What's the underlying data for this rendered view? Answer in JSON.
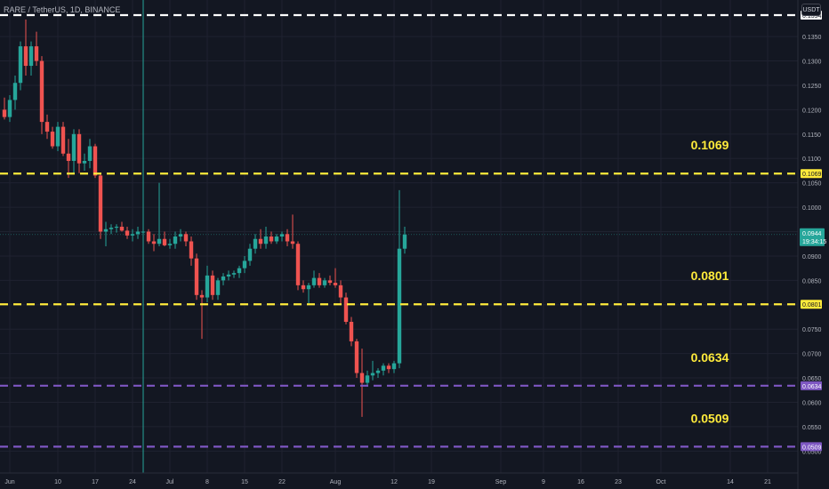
{
  "header": {
    "title": "RARE / TetherUS, 1D, BINANCE"
  },
  "currency_button": {
    "label": "USDT"
  },
  "price_badge": {
    "value": "0.0944",
    "countdown": "19:34:15",
    "color": "#26a69a"
  },
  "colors": {
    "background": "#131722",
    "grid": "#1f2230",
    "up": "#26a69a",
    "down": "#ef5350",
    "white_level": "#ffffff",
    "yellow_level": "#ffeb3b",
    "purple_level": "#7e57c2",
    "axis_text": "#b2b5be"
  },
  "chart_data": {
    "type": "candlestick",
    "title": "RARE / TetherUS, 1D, BINANCE",
    "xlabel": "",
    "ylabel": "",
    "ylim": [
      0.0455,
      0.1425
    ],
    "grid": true,
    "y_ticks": [
      "0.0500",
      "0.0550",
      "0.0600",
      "0.0650",
      "0.0700",
      "0.0750",
      "0.0800",
      "0.0850",
      "0.0900",
      "0.0950",
      "0.1000",
      "0.1050",
      "0.1100",
      "0.1150",
      "0.1200",
      "0.1250",
      "0.1300",
      "0.1350"
    ],
    "x_ticks": [
      {
        "label": "Jun",
        "date": "2024-06-01"
      },
      {
        "label": "10",
        "date": "2024-06-10"
      },
      {
        "label": "17",
        "date": "2024-06-17"
      },
      {
        "label": "24",
        "date": "2024-06-24"
      },
      {
        "label": "Jul",
        "date": "2024-07-01"
      },
      {
        "label": "8",
        "date": "2024-07-08"
      },
      {
        "label": "15",
        "date": "2024-07-15"
      },
      {
        "label": "22",
        "date": "2024-07-22"
      },
      {
        "label": "Aug",
        "date": "2024-08-01"
      },
      {
        "label": "12",
        "date": "2024-08-12"
      },
      {
        "label": "19",
        "date": "2024-08-19"
      },
      {
        "label": "Sep",
        "date": "2024-09-01"
      },
      {
        "label": "9",
        "date": "2024-09-09"
      },
      {
        "label": "16",
        "date": "2024-09-16"
      },
      {
        "label": "23",
        "date": "2024-09-23"
      },
      {
        "label": "Oct",
        "date": "2024-10-01"
      },
      {
        "label": "14",
        "date": "2024-10-14"
      },
      {
        "label": "21",
        "date": "2024-10-21"
      }
    ],
    "levels": [
      {
        "value": 0.1394,
        "label": "0.1394",
        "color": "#ffffff"
      },
      {
        "value": 0.1069,
        "label": "0.1069",
        "color": "#ffeb3b"
      },
      {
        "value": 0.0801,
        "label": "0.0801",
        "color": "#ffeb3b"
      },
      {
        "value": 0.0634,
        "label": "0.0634",
        "color": "#7e57c2"
      },
      {
        "value": 0.0509,
        "label": "0.0509",
        "color": "#7e57c2"
      }
    ],
    "last_price": 0.0944,
    "candles": [
      {
        "date": "2024-05-31",
        "o": 0.12,
        "h": 0.1225,
        "l": 0.118,
        "c": 0.1185
      },
      {
        "date": "2024-06-01",
        "o": 0.1185,
        "h": 0.123,
        "l": 0.1175,
        "c": 0.122
      },
      {
        "date": "2024-06-02",
        "o": 0.122,
        "h": 0.127,
        "l": 0.12,
        "c": 0.1255
      },
      {
        "date": "2024-06-03",
        "o": 0.1255,
        "h": 0.134,
        "l": 0.124,
        "c": 0.133
      },
      {
        "date": "2024-06-04",
        "o": 0.133,
        "h": 0.1385,
        "l": 0.127,
        "c": 0.129
      },
      {
        "date": "2024-06-05",
        "o": 0.129,
        "h": 0.134,
        "l": 0.127,
        "c": 0.133
      },
      {
        "date": "2024-06-06",
        "o": 0.133,
        "h": 0.136,
        "l": 0.129,
        "c": 0.13
      },
      {
        "date": "2024-06-07",
        "o": 0.13,
        "h": 0.131,
        "l": 0.115,
        "c": 0.1175
      },
      {
        "date": "2024-06-08",
        "o": 0.1175,
        "h": 0.119,
        "l": 0.114,
        "c": 0.1155
      },
      {
        "date": "2024-06-09",
        "o": 0.1155,
        "h": 0.1165,
        "l": 0.112,
        "c": 0.1125
      },
      {
        "date": "2024-06-10",
        "o": 0.1125,
        "h": 0.1175,
        "l": 0.1115,
        "c": 0.1165
      },
      {
        "date": "2024-06-11",
        "o": 0.1165,
        "h": 0.1175,
        "l": 0.1105,
        "c": 0.111
      },
      {
        "date": "2024-06-12",
        "o": 0.111,
        "h": 0.114,
        "l": 0.106,
        "c": 0.1095
      },
      {
        "date": "2024-06-13",
        "o": 0.1095,
        "h": 0.116,
        "l": 0.107,
        "c": 0.115
      },
      {
        "date": "2024-06-14",
        "o": 0.115,
        "h": 0.116,
        "l": 0.107,
        "c": 0.109
      },
      {
        "date": "2024-06-15",
        "o": 0.109,
        "h": 0.111,
        "l": 0.1075,
        "c": 0.1095
      },
      {
        "date": "2024-06-16",
        "o": 0.1095,
        "h": 0.114,
        "l": 0.108,
        "c": 0.1125
      },
      {
        "date": "2024-06-17",
        "o": 0.1125,
        "h": 0.113,
        "l": 0.106,
        "c": 0.1065
      },
      {
        "date": "2024-06-18",
        "o": 0.1065,
        "h": 0.107,
        "l": 0.0935,
        "c": 0.095
      },
      {
        "date": "2024-06-19",
        "o": 0.095,
        "h": 0.097,
        "l": 0.092,
        "c": 0.0955
      },
      {
        "date": "2024-06-20",
        "o": 0.0955,
        "h": 0.0965,
        "l": 0.0945,
        "c": 0.0958
      },
      {
        "date": "2024-06-21",
        "o": 0.0958,
        "h": 0.0965,
        "l": 0.0948,
        "c": 0.096
      },
      {
        "date": "2024-06-22",
        "o": 0.096,
        "h": 0.097,
        "l": 0.095,
        "c": 0.0952
      },
      {
        "date": "2024-06-23",
        "o": 0.0952,
        "h": 0.096,
        "l": 0.0935,
        "c": 0.0942
      },
      {
        "date": "2024-06-24",
        "o": 0.0942,
        "h": 0.0955,
        "l": 0.093,
        "c": 0.0945
      },
      {
        "date": "2024-06-25",
        "o": 0.0945,
        "h": 0.096,
        "l": 0.0935,
        "c": 0.095
      },
      {
        "date": "2024-06-26",
        "o": 0.095,
        "h": 1.0,
        "l": 0.0,
        "c": 0.095
      },
      {
        "date": "2024-06-27",
        "o": 0.095,
        "h": 0.0955,
        "l": 0.0925,
        "c": 0.093
      },
      {
        "date": "2024-06-28",
        "o": 0.093,
        "h": 0.0945,
        "l": 0.091,
        "c": 0.0925
      },
      {
        "date": "2024-06-29",
        "o": 0.0925,
        "h": 0.105,
        "l": 0.092,
        "c": 0.0935
      },
      {
        "date": "2024-06-30",
        "o": 0.0935,
        "h": 0.095,
        "l": 0.092,
        "c": 0.0922
      },
      {
        "date": "2024-07-01",
        "o": 0.0922,
        "h": 0.0935,
        "l": 0.0915,
        "c": 0.0925
      },
      {
        "date": "2024-07-02",
        "o": 0.0925,
        "h": 0.095,
        "l": 0.0915,
        "c": 0.094
      },
      {
        "date": "2024-07-03",
        "o": 0.094,
        "h": 0.0955,
        "l": 0.093,
        "c": 0.0945
      },
      {
        "date": "2024-07-04",
        "o": 0.0945,
        "h": 0.095,
        "l": 0.092,
        "c": 0.093
      },
      {
        "date": "2024-07-05",
        "o": 0.093,
        "h": 0.094,
        "l": 0.088,
        "c": 0.0895
      },
      {
        "date": "2024-07-06",
        "o": 0.0895,
        "h": 0.0905,
        "l": 0.081,
        "c": 0.082
      },
      {
        "date": "2024-07-07",
        "o": 0.082,
        "h": 0.083,
        "l": 0.073,
        "c": 0.0815
      },
      {
        "date": "2024-07-08",
        "o": 0.0815,
        "h": 0.088,
        "l": 0.0805,
        "c": 0.086
      },
      {
        "date": "2024-07-09",
        "o": 0.086,
        "h": 0.087,
        "l": 0.081,
        "c": 0.082
      },
      {
        "date": "2024-07-10",
        "o": 0.082,
        "h": 0.0855,
        "l": 0.081,
        "c": 0.085
      },
      {
        "date": "2024-07-11",
        "o": 0.085,
        "h": 0.0865,
        "l": 0.084,
        "c": 0.0858
      },
      {
        "date": "2024-07-12",
        "o": 0.0858,
        "h": 0.087,
        "l": 0.085,
        "c": 0.0862
      },
      {
        "date": "2024-07-13",
        "o": 0.0862,
        "h": 0.087,
        "l": 0.0855,
        "c": 0.0865
      },
      {
        "date": "2024-07-14",
        "o": 0.0865,
        "h": 0.088,
        "l": 0.0855,
        "c": 0.0875
      },
      {
        "date": "2024-07-15",
        "o": 0.0875,
        "h": 0.09,
        "l": 0.0865,
        "c": 0.089
      },
      {
        "date": "2024-07-16",
        "o": 0.089,
        "h": 0.0925,
        "l": 0.088,
        "c": 0.0915
      },
      {
        "date": "2024-07-17",
        "o": 0.0915,
        "h": 0.0945,
        "l": 0.0905,
        "c": 0.0935
      },
      {
        "date": "2024-07-18",
        "o": 0.0935,
        "h": 0.0955,
        "l": 0.0915,
        "c": 0.0925
      },
      {
        "date": "2024-07-19",
        "o": 0.0925,
        "h": 0.096,
        "l": 0.0915,
        "c": 0.094
      },
      {
        "date": "2024-07-20",
        "o": 0.094,
        "h": 0.095,
        "l": 0.0925,
        "c": 0.093
      },
      {
        "date": "2024-07-21",
        "o": 0.093,
        "h": 0.0945,
        "l": 0.0925,
        "c": 0.094
      },
      {
        "date": "2024-07-22",
        "o": 0.094,
        "h": 0.095,
        "l": 0.093,
        "c": 0.0945
      },
      {
        "date": "2024-07-23",
        "o": 0.0945,
        "h": 0.0955,
        "l": 0.092,
        "c": 0.093
      },
      {
        "date": "2024-07-24",
        "o": 0.093,
        "h": 0.0985,
        "l": 0.0915,
        "c": 0.0925
      },
      {
        "date": "2024-07-25",
        "o": 0.0925,
        "h": 0.093,
        "l": 0.083,
        "c": 0.084
      },
      {
        "date": "2024-07-26",
        "o": 0.084,
        "h": 0.085,
        "l": 0.0825,
        "c": 0.0832
      },
      {
        "date": "2024-07-27",
        "o": 0.0832,
        "h": 0.0845,
        "l": 0.08,
        "c": 0.084
      },
      {
        "date": "2024-07-28",
        "o": 0.084,
        "h": 0.087,
        "l": 0.0835,
        "c": 0.0855
      },
      {
        "date": "2024-07-29",
        "o": 0.0855,
        "h": 0.0865,
        "l": 0.0835,
        "c": 0.084
      },
      {
        "date": "2024-07-30",
        "o": 0.084,
        "h": 0.0855,
        "l": 0.0835,
        "c": 0.085
      },
      {
        "date": "2024-07-31",
        "o": 0.085,
        "h": 0.086,
        "l": 0.084,
        "c": 0.0845
      },
      {
        "date": "2024-08-01",
        "o": 0.0845,
        "h": 0.0875,
        "l": 0.0835,
        "c": 0.084
      },
      {
        "date": "2024-08-02",
        "o": 0.084,
        "h": 0.085,
        "l": 0.08,
        "c": 0.0815
      },
      {
        "date": "2024-08-03",
        "o": 0.0815,
        "h": 0.0825,
        "l": 0.076,
        "c": 0.0765
      },
      {
        "date": "2024-08-04",
        "o": 0.0765,
        "h": 0.0775,
        "l": 0.0715,
        "c": 0.0725
      },
      {
        "date": "2024-08-05",
        "o": 0.0725,
        "h": 0.073,
        "l": 0.065,
        "c": 0.066
      },
      {
        "date": "2024-08-06",
        "o": 0.066,
        "h": 0.071,
        "l": 0.057,
        "c": 0.064
      },
      {
        "date": "2024-08-07",
        "o": 0.064,
        "h": 0.0665,
        "l": 0.0632,
        "c": 0.0655
      },
      {
        "date": "2024-08-08",
        "o": 0.0655,
        "h": 0.0685,
        "l": 0.0645,
        "c": 0.066
      },
      {
        "date": "2024-08-09",
        "o": 0.066,
        "h": 0.067,
        "l": 0.065,
        "c": 0.0665
      },
      {
        "date": "2024-08-10",
        "o": 0.0665,
        "h": 0.068,
        "l": 0.0655,
        "c": 0.0675
      },
      {
        "date": "2024-08-11",
        "o": 0.0675,
        "h": 0.068,
        "l": 0.066,
        "c": 0.0668
      },
      {
        "date": "2024-08-12",
        "o": 0.0668,
        "h": 0.0685,
        "l": 0.066,
        "c": 0.068
      },
      {
        "date": "2024-08-13",
        "o": 0.068,
        "h": 0.1035,
        "l": 0.067,
        "c": 0.0915
      },
      {
        "date": "2024-08-14",
        "o": 0.0915,
        "h": 0.096,
        "l": 0.0905,
        "c": 0.0944
      }
    ]
  }
}
